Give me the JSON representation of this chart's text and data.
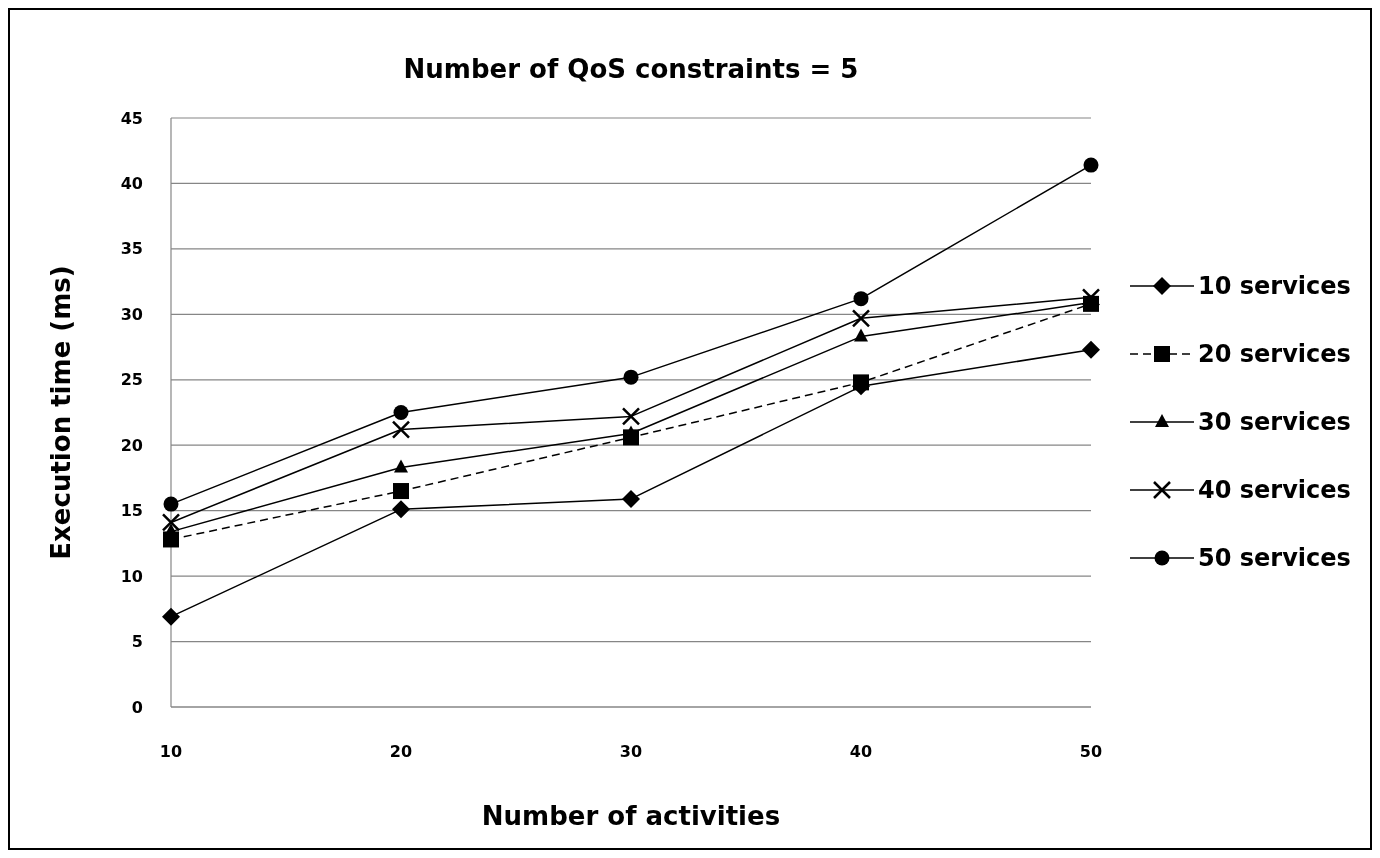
{
  "chart_data": {
    "type": "line",
    "title": "Number of QoS constraints = 5",
    "xlabel": "Number of activities",
    "ylabel": "Execution time (ms)",
    "categories": [
      "10",
      "20",
      "30",
      "40",
      "50"
    ],
    "ylim": [
      0,
      45
    ],
    "yticks": [
      0,
      5,
      10,
      15,
      20,
      25,
      30,
      35,
      40,
      45
    ],
    "grid": "y",
    "legend": "right",
    "series": [
      {
        "name": "10 services",
        "color": "#000000",
        "marker": "diamond",
        "line_style": "solid",
        "values": [
          6.9,
          15.1,
          15.9,
          24.5,
          27.3
        ]
      },
      {
        "name": "20 services",
        "color": "#000000",
        "marker": "square",
        "line_style": "dashed",
        "values": [
          12.8,
          16.5,
          20.6,
          24.8,
          30.8
        ]
      },
      {
        "name": "30 services",
        "color": "#000000",
        "marker": "triangle",
        "line_style": "solid",
        "values": [
          13.4,
          18.3,
          20.9,
          28.3,
          30.9
        ]
      },
      {
        "name": "40 services",
        "color": "#000000",
        "marker": "cross",
        "line_style": "solid",
        "values": [
          14.1,
          21.2,
          22.2,
          29.7,
          31.3
        ]
      },
      {
        "name": "50 services",
        "color": "#000000",
        "marker": "circle",
        "line_style": "solid",
        "values": [
          15.5,
          22.5,
          25.2,
          31.2,
          41.4
        ]
      }
    ]
  }
}
